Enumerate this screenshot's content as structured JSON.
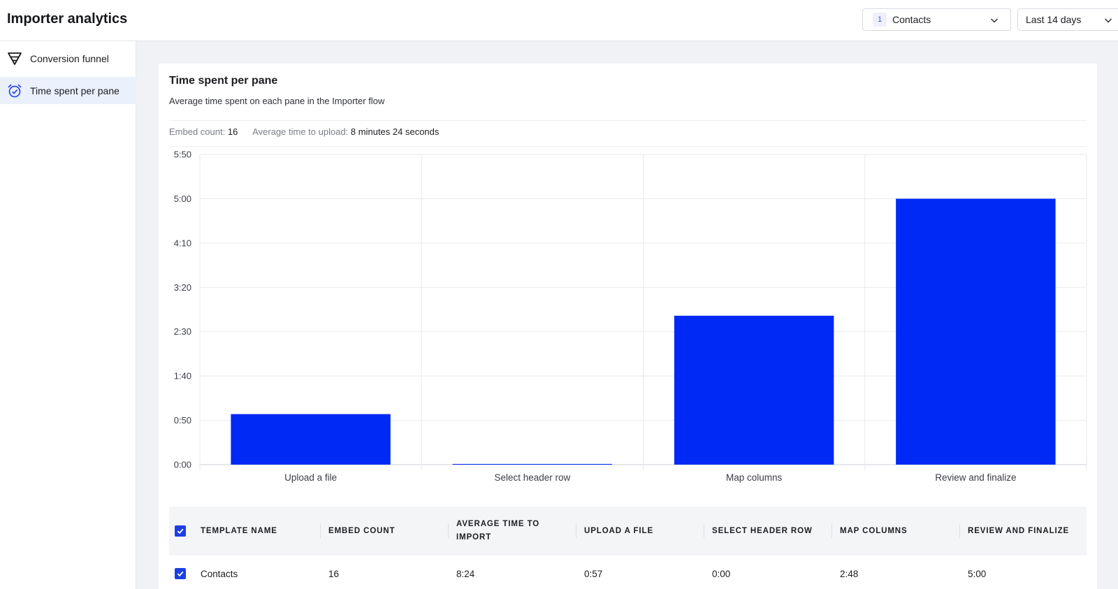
{
  "app": {
    "title": "Importer analytics"
  },
  "header": {
    "template_select": {
      "count": "1",
      "value": "Contacts"
    },
    "range_select": {
      "value": "Last 14 days"
    }
  },
  "sidebar": {
    "items": [
      {
        "label": "Conversion funnel",
        "icon": "funnel-icon",
        "active": false
      },
      {
        "label": "Time spent per pane",
        "icon": "alarm-clock-icon",
        "active": true
      }
    ]
  },
  "card": {
    "title": "Time spent per pane",
    "subtitle": "Average time spent on each pane in the Importer flow",
    "stats": {
      "embed_label": "Embed count:",
      "embed_value": "16",
      "avg_label": "Average time to upload:",
      "avg_value": "8 minutes 24 seconds"
    }
  },
  "chart_data": {
    "type": "bar",
    "categories": [
      "Upload a file",
      "Select header row",
      "Map columns",
      "Review and finalize"
    ],
    "values": [
      57,
      0,
      168,
      300
    ],
    "value_unit": "seconds",
    "ylim": [
      0,
      350
    ],
    "yticks": [
      0,
      50,
      100,
      150,
      200,
      250,
      300,
      350
    ],
    "ytick_labels": [
      "0:00",
      "0:50",
      "1:40",
      "2:30",
      "3:20",
      "4:10",
      "5:00",
      "5:50"
    ],
    "grid": true,
    "color": "#0029f5",
    "title": "",
    "xlabel": "",
    "ylabel": ""
  },
  "table": {
    "columns": [
      "TEMPLATE NAME",
      "EMBED COUNT",
      "AVERAGE TIME TO IMPORT",
      "UPLOAD A FILE",
      "SELECT HEADER ROW",
      "MAP COLUMNS",
      "REVIEW AND FINALIZE"
    ],
    "rows": [
      [
        "Contacts",
        "16",
        "8:24",
        "0:57",
        "0:00",
        "2:48",
        "5:00"
      ]
    ]
  },
  "colors": {
    "accent": "#0029f5",
    "checkbox": "#1b3fe0",
    "active_nav": "#eaf0fc"
  }
}
